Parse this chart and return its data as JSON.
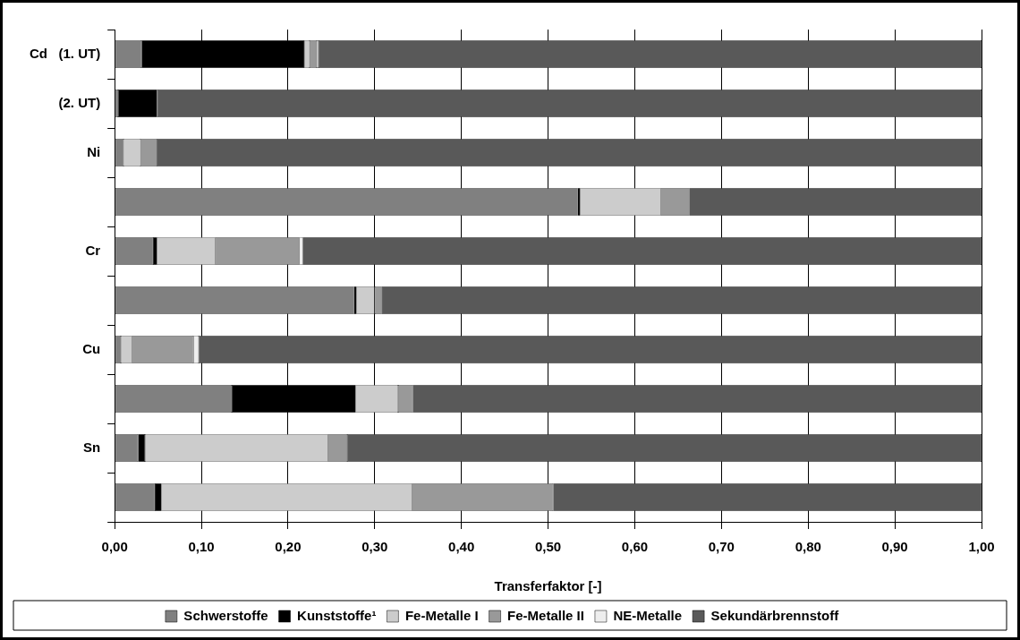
{
  "chart_data": {
    "type": "bar",
    "orientation": "horizontal",
    "stacked": true,
    "xlabel": "Transferfaktor [-]",
    "categories": [
      "Cd   (1. UT)",
      "(2. UT)",
      "Ni",
      null,
      "Cr",
      null,
      "Cu",
      null,
      "Sn",
      null
    ],
    "series": [
      {
        "name": "Schwerstoffe",
        "color": "#808080",
        "values": [
          0.031,
          0.004,
          0.01,
          0.534,
          0.044,
          0.276,
          0.007,
          0.135,
          0.027,
          0.046
        ]
      },
      {
        "name": "Kunststoffe¹",
        "color": "#000000",
        "values": [
          0.188,
          0.045,
          0,
          0.003,
          0.005,
          0.003,
          0,
          0.143,
          0.008,
          0.008
        ]
      },
      {
        "name": "Fe-Metalle I",
        "color": "#cccccc",
        "values": [
          0.006,
          0,
          0.02,
          0.093,
          0.067,
          0.021,
          0.013,
          0.049,
          0.211,
          0.289
        ]
      },
      {
        "name": "Fe-Metalle II",
        "color": "#999999",
        "values": [
          0.008,
          0,
          0.018,
          0.033,
          0.097,
          0.008,
          0.071,
          0.017,
          0.022,
          0.163
        ]
      },
      {
        "name": "NE-Metalle",
        "color": "#eeeeee",
        "values": [
          0.002,
          0,
          0,
          0,
          0.004,
          0,
          0.006,
          0,
          0,
          0
        ]
      },
      {
        "name": "Sekundärbrennstoff",
        "color": "#595959",
        "values": [
          0.765,
          0.951,
          0.952,
          0.337,
          0.783,
          0.692,
          0.903,
          0.656,
          0.732,
          0.494
        ]
      }
    ],
    "xlim": [
      0,
      1
    ],
    "xticks": [
      {
        "value": 0,
        "label": "0,00"
      },
      {
        "value": 0.1,
        "label": "0,10"
      },
      {
        "value": 0.2,
        "label": "0,20"
      },
      {
        "value": 0.3,
        "label": "0,30"
      },
      {
        "value": 0.4,
        "label": "0,40"
      },
      {
        "value": 0.5,
        "label": "0,50"
      },
      {
        "value": 0.6,
        "label": "0,60"
      },
      {
        "value": 0.7,
        "label": "0,70"
      },
      {
        "value": 0.8,
        "label": "0,80"
      },
      {
        "value": 0.9,
        "label": "0,90"
      },
      {
        "value": 1,
        "label": "1,00"
      }
    ],
    "grid": "x",
    "legend": "bottom"
  }
}
